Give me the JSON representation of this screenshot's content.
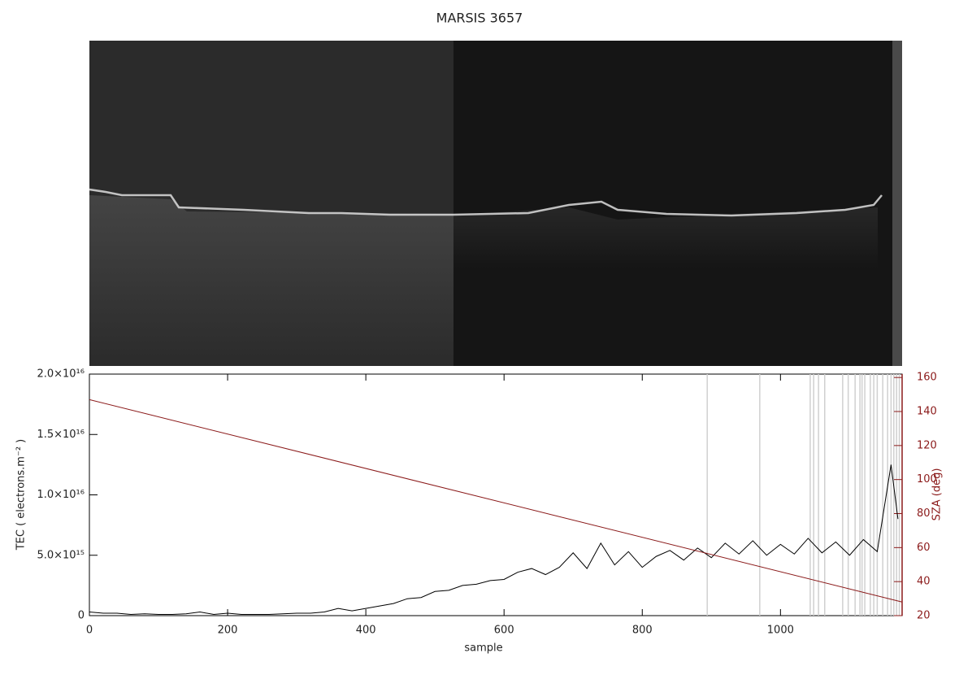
{
  "chart_data": {
    "type": "line",
    "title": "MARSIS 3657",
    "xlabel": "sample",
    "ylabel": "TEC ( electrons.m⁻² )",
    "y2label": "SZA (deg)",
    "x": [
      0,
      20,
      40,
      60,
      80,
      100,
      120,
      140,
      160,
      180,
      200,
      220,
      240,
      260,
      280,
      300,
      320,
      340,
      360,
      380,
      400,
      420,
      440,
      460,
      480,
      500,
      520,
      540,
      560,
      580,
      600,
      620,
      640,
      660,
      680,
      700,
      720,
      740,
      760,
      780,
      800,
      820,
      840,
      860,
      880,
      900,
      920,
      940,
      960,
      980,
      1000,
      1020,
      1040,
      1060,
      1080,
      1100,
      1120,
      1140,
      1160,
      1170
    ],
    "series": [
      {
        "color": "#000000",
        "values": [
          300000000000000.0,
          200000000000000.0,
          200000000000000.0,
          100000000000000.0,
          150000000000000.0,
          100000000000000.0,
          100000000000000.0,
          150000000000000.0,
          300000000000000.0,
          100000000000000.0,
          200000000000000.0,
          100000000000000.0,
          100000000000000.0,
          100000000000000.0,
          150000000000000.0,
          200000000000000.0,
          200000000000000.0,
          300000000000000.0,
          600000000000000.0,
          400000000000000.0,
          600000000000000.0,
          800000000000000.0,
          1000000000000000.0,
          1400000000000000.0,
          1500000000000000.0,
          2000000000000000.0,
          2100000000000000.0,
          2500000000000000.0,
          2600000000000000.0,
          2900000000000000.0,
          3000000000000000.0,
          3600000000000000.0,
          3900000000000000.0,
          3400000000000000.0,
          4000000000000000.0,
          5200000000000000.0,
          3900000000000000.0,
          6000000000000000.0,
          4200000000000000.0,
          5300000000000000.0,
          4000000000000000.0,
          4900000000000000.0,
          5400000000000000.0,
          4600000000000000.0,
          5600000000000000.0,
          4800000000000000.0,
          6000000000000000.0,
          5100000000000000.0,
          6200000000000000.0,
          5000000000000000.0,
          5900000000000000.0,
          5100000000000000.0,
          6400000000000000.0,
          5200000000000000.0,
          6100000000000000.0,
          5000000000000000.0,
          6300000000000000.0,
          5300000000000000.0,
          1.25e+16,
          8000000000000000.0
        ]
      },
      {
        "color": "#8b1a1a",
        "axis": "y2",
        "x": [
          0,
          1176
        ],
        "values": [
          147,
          28
        ]
      }
    ],
    "gaps": [
      894,
      970,
      1043,
      1048,
      1055,
      1064,
      1090,
      1098,
      1108,
      1115,
      1118,
      1122,
      1130,
      1135,
      1140,
      1148,
      1155,
      1160,
      1164,
      1168,
      1172
    ],
    "xlim": [
      0,
      1176
    ],
    "xticks": [
      0,
      200,
      400,
      600,
      800,
      1000
    ],
    "ylim": [
      0,
      2e+16
    ],
    "yticks": [
      0,
      {
        "value": 5000000000000000.0,
        "label": "5.0×10¹⁵"
      },
      {
        "value": 1e+16,
        "label": "1.0×10¹⁶"
      },
      {
        "value": 1.5e+16,
        "label": "1.5×10¹⁶"
      },
      {
        "value": 2e+16,
        "label": "2.0×10¹⁶"
      }
    ],
    "y2lim": [
      20,
      162
    ],
    "y2ticks": [
      20,
      40,
      60,
      80,
      100,
      120,
      140,
      160
    ],
    "y2color": "#8b1a1a"
  }
}
